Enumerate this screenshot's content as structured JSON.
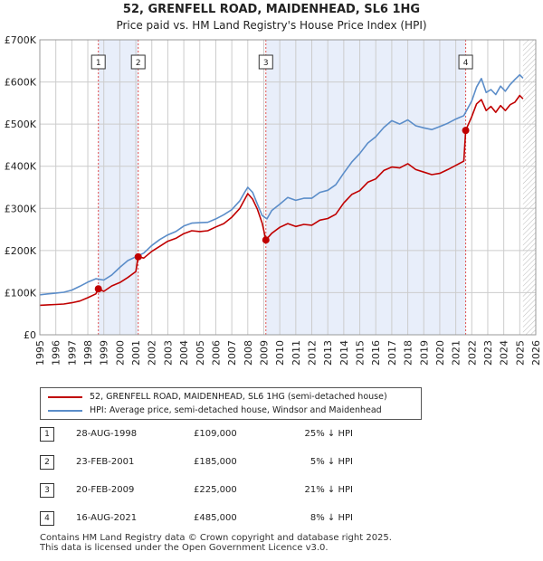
{
  "title": {
    "line1": "52, GRENFELL ROAD, MAIDENHEAD, SL6 1HG",
    "line2": "Price paid vs. HM Land Registry's House Price Index (HPI)"
  },
  "colors": {
    "price_paid": "#c00000",
    "hpi": "#5b8dc9",
    "shade": "#e8eefa",
    "marker_line": "#e05050",
    "grid": "#cccccc"
  },
  "chart_data": {
    "type": "line",
    "xlim": [
      1995,
      2026
    ],
    "ylim": [
      0,
      700000
    ],
    "x_ticks": [
      "1995",
      "1996",
      "1997",
      "1998",
      "1999",
      "2000",
      "2001",
      "2002",
      "2003",
      "2004",
      "2005",
      "2006",
      "2007",
      "2008",
      "2009",
      "2010",
      "2011",
      "2012",
      "2013",
      "2014",
      "2015",
      "2016",
      "2017",
      "2018",
      "2019",
      "2020",
      "2021",
      "2022",
      "2023",
      "2024",
      "2025",
      "2026"
    ],
    "y_ticks": [
      {
        "value": 0,
        "label": "£0"
      },
      {
        "value": 100000,
        "label": "£100K"
      },
      {
        "value": 200000,
        "label": "£200K"
      },
      {
        "value": 300000,
        "label": "£300K"
      },
      {
        "value": 400000,
        "label": "£400K"
      },
      {
        "value": 500000,
        "label": "£500K"
      },
      {
        "value": 600000,
        "label": "£600K"
      },
      {
        "value": 700000,
        "label": "£700K"
      }
    ],
    "grid": true,
    "hatched_after": 2025.2,
    "shaded_ranges": [
      [
        1998.66,
        2001.15
      ],
      [
        2009.13,
        2021.62
      ]
    ],
    "sales": [
      {
        "label": "1",
        "x": 1998.66,
        "y": 109000
      },
      {
        "label": "2",
        "x": 2001.15,
        "y": 185000
      },
      {
        "label": "3",
        "x": 2009.13,
        "y": 225000
      },
      {
        "label": "4",
        "x": 2021.62,
        "y": 485000
      }
    ],
    "series": [
      {
        "name": "52, GRENFELL ROAD, MAIDENHEAD, SL6 1HG (semi-detached house)",
        "x": [
          1995.0,
          1995.5,
          1996.0,
          1996.5,
          1997.0,
          1997.5,
          1998.0,
          1998.5,
          1998.66,
          1999.0,
          1999.5,
          2000.0,
          2000.5,
          2001.0,
          2001.15,
          2001.5,
          2002.0,
          2002.5,
          2003.0,
          2003.5,
          2004.0,
          2004.5,
          2005.0,
          2005.5,
          2006.0,
          2006.5,
          2007.0,
          2007.5,
          2007.8,
          2008.0,
          2008.3,
          2008.6,
          2008.9,
          2009.13,
          2009.5,
          2010.0,
          2010.5,
          2011.0,
          2011.5,
          2012.0,
          2012.5,
          2013.0,
          2013.5,
          2014.0,
          2014.5,
          2015.0,
          2015.5,
          2016.0,
          2016.5,
          2017.0,
          2017.5,
          2018.0,
          2018.5,
          2019.0,
          2019.5,
          2020.0,
          2020.5,
          2021.0,
          2021.5,
          2021.62,
          2022.0,
          2022.3,
          2022.6,
          2022.9,
          2023.2,
          2023.5,
          2023.8,
          2024.1,
          2024.4,
          2024.7,
          2025.0,
          2025.2
        ],
        "values": [
          70000,
          71000,
          72000,
          73000,
          76000,
          80000,
          88000,
          97000,
          109000,
          103000,
          116000,
          124000,
          136000,
          150000,
          185000,
          182000,
          198000,
          210000,
          222000,
          229000,
          240000,
          247000,
          245000,
          247000,
          256000,
          264000,
          279000,
          300000,
          321000,
          335000,
          322000,
          298000,
          265000,
          225000,
          241000,
          255000,
          264000,
          257000,
          262000,
          260000,
          272000,
          276000,
          286000,
          313000,
          333000,
          342000,
          362000,
          370000,
          390000,
          398000,
          396000,
          406000,
          392000,
          386000,
          380000,
          383000,
          392000,
          402000,
          412000,
          485000,
          518000,
          548000,
          558000,
          532000,
          542000,
          528000,
          544000,
          532000,
          546000,
          552000,
          568000,
          560000
        ]
      },
      {
        "name": "HPI: Average price, semi-detached house, Windsor and Maidenhead",
        "x": [
          1995.0,
          1995.5,
          1996.0,
          1996.5,
          1997.0,
          1997.5,
          1998.0,
          1998.5,
          1999.0,
          1999.5,
          2000.0,
          2000.5,
          2001.0,
          2001.5,
          2002.0,
          2002.5,
          2003.0,
          2003.5,
          2004.0,
          2004.5,
          2005.0,
          2005.5,
          2006.0,
          2006.5,
          2007.0,
          2007.5,
          2007.8,
          2008.0,
          2008.3,
          2008.6,
          2008.9,
          2009.2,
          2009.5,
          2010.0,
          2010.5,
          2011.0,
          2011.5,
          2012.0,
          2012.5,
          2013.0,
          2013.5,
          2014.0,
          2014.5,
          2015.0,
          2015.5,
          2016.0,
          2016.5,
          2017.0,
          2017.5,
          2018.0,
          2018.5,
          2019.0,
          2019.5,
          2020.0,
          2020.5,
          2021.0,
          2021.5,
          2022.0,
          2022.3,
          2022.6,
          2022.9,
          2023.2,
          2023.5,
          2023.8,
          2024.1,
          2024.4,
          2024.7,
          2025.0,
          2025.2
        ],
        "values": [
          95000,
          97000,
          99000,
          101000,
          106000,
          115000,
          125000,
          133000,
          130000,
          142000,
          160000,
          176000,
          185000,
          194000,
          212000,
          226000,
          237000,
          245000,
          258000,
          265000,
          266000,
          267000,
          275000,
          285000,
          297000,
          318000,
          338000,
          350000,
          338000,
          310000,
          283000,
          275000,
          295000,
          310000,
          326000,
          319000,
          324000,
          324000,
          338000,
          343000,
          356000,
          384000,
          410000,
          430000,
          455000,
          470000,
          492000,
          508000,
          500000,
          510000,
          496000,
          491000,
          487000,
          494000,
          502000,
          512000,
          520000,
          555000,
          588000,
          608000,
          575000,
          582000,
          570000,
          590000,
          578000,
          594000,
          606000,
          617000,
          609000
        ]
      }
    ]
  },
  "legend": {
    "price_paid_label": "52, GRENFELL ROAD, MAIDENHEAD, SL6 1HG (semi-detached house)",
    "hpi_label": "HPI: Average price, semi-detached house, Windsor and Maidenhead"
  },
  "sales_table": [
    {
      "num": "1",
      "date": "28-AUG-1998",
      "price": "£109,000",
      "hpi": "25% ↓ HPI"
    },
    {
      "num": "2",
      "date": "23-FEB-2001",
      "price": "£185,000",
      "hpi": "5% ↓ HPI"
    },
    {
      "num": "3",
      "date": "20-FEB-2009",
      "price": "£225,000",
      "hpi": "21% ↓ HPI"
    },
    {
      "num": "4",
      "date": "16-AUG-2021",
      "price": "£485,000",
      "hpi": "8% ↓ HPI"
    }
  ],
  "footer": {
    "line1": "Contains HM Land Registry data © Crown copyright and database right 2025.",
    "line2": "This data is licensed under the Open Government Licence v3.0."
  }
}
